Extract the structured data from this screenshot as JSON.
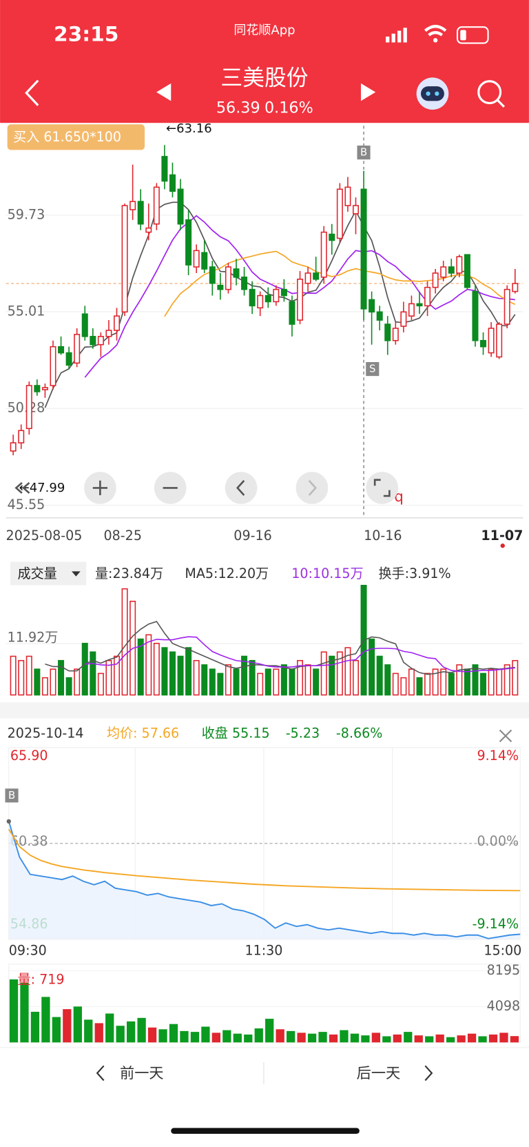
{
  "status": {
    "time": "23:15",
    "app": "同花顺App"
  },
  "header": {
    "name": "三美股份",
    "price": "56.39",
    "change": "0.16%"
  },
  "kline": {
    "type": "candlestick",
    "trade_tag": "买入 61.650*100",
    "high_label": "←63.16",
    "low_label": "←47.99",
    "buy_label": "B",
    "sell_label": "S",
    "marker_label": "q",
    "dates": [
      "2025-08-05",
      "08-25",
      "09-16",
      "10-16",
      "11-07"
    ],
    "ylim": [
      45.0,
      64.1
    ],
    "yticks": [
      59.73,
      55.01,
      50.28,
      45.55
    ],
    "last_price": 56.39,
    "up_color": "#e0262e",
    "down_color": "#0b8a20",
    "candles": [
      [
        48.2,
        49.0,
        47.99,
        48.6
      ],
      [
        48.6,
        49.5,
        48.3,
        49.2
      ],
      [
        49.3,
        51.6,
        49.0,
        51.4
      ],
      [
        51.4,
        51.7,
        50.9,
        51.1
      ],
      [
        51.2,
        51.5,
        50.8,
        51.3
      ],
      [
        51.4,
        53.6,
        51.2,
        53.3
      ],
      [
        53.3,
        53.8,
        52.9,
        53.0
      ],
      [
        53.0,
        53.3,
        52.2,
        52.4
      ],
      [
        52.5,
        54.2,
        52.3,
        53.9
      ],
      [
        54.9,
        55.3,
        53.6,
        53.8
      ],
      [
        53.8,
        54.2,
        53.2,
        53.4
      ],
      [
        53.4,
        54.0,
        52.8,
        53.8
      ],
      [
        53.8,
        54.6,
        53.4,
        54.1
      ],
      [
        54.1,
        55.2,
        53.6,
        54.8
      ],
      [
        55.0,
        60.3,
        54.8,
        60.2
      ],
      [
        60.0,
        62.2,
        59.5,
        60.4
      ],
      [
        60.4,
        61.0,
        59.0,
        59.3
      ],
      [
        58.9,
        60.3,
        58.5,
        59.1
      ],
      [
        59.3,
        61.3,
        59.0,
        61.1
      ],
      [
        62.6,
        63.16,
        61.0,
        61.4
      ],
      [
        61.7,
        62.3,
        60.6,
        60.9
      ],
      [
        61.0,
        61.5,
        59.0,
        59.3
      ],
      [
        59.5,
        60.0,
        56.8,
        57.3
      ],
      [
        57.2,
        58.3,
        56.9,
        58.0
      ],
      [
        57.9,
        58.5,
        56.9,
        57.1
      ],
      [
        57.2,
        57.5,
        55.8,
        56.4
      ],
      [
        56.3,
        56.9,
        55.6,
        56.1
      ],
      [
        56.1,
        57.4,
        55.9,
        57.2
      ],
      [
        57.1,
        57.6,
        56.3,
        56.7
      ],
      [
        56.7,
        57.2,
        55.8,
        56.1
      ],
      [
        56.1,
        56.5,
        54.9,
        55.3
      ],
      [
        55.2,
        56.0,
        54.8,
        55.8
      ],
      [
        55.8,
        56.2,
        55.2,
        55.5
      ],
      [
        55.5,
        56.3,
        55.3,
        56.1
      ],
      [
        56.1,
        56.6,
        55.5,
        55.8
      ],
      [
        55.5,
        55.8,
        53.8,
        54.4
      ],
      [
        54.6,
        57.0,
        54.4,
        56.6
      ],
      [
        56.4,
        57.2,
        56.0,
        56.9
      ],
      [
        56.9,
        57.7,
        56.5,
        56.6
      ],
      [
        56.7,
        59.2,
        56.4,
        58.9
      ],
      [
        58.8,
        59.3,
        57.8,
        58.5
      ],
      [
        58.6,
        61.3,
        58.4,
        61.0
      ],
      [
        60.2,
        61.6,
        59.9,
        61.1
      ],
      [
        59.8,
        60.6,
        58.8,
        60.2
      ],
      [
        61.0,
        61.9,
        54.6,
        55.15
      ],
      [
        55.6,
        56.0,
        53.4,
        55.0
      ],
      [
        55.0,
        55.3,
        54.1,
        54.6
      ],
      [
        54.4,
        54.8,
        52.9,
        53.6
      ],
      [
        53.6,
        54.5,
        53.4,
        54.2
      ],
      [
        54.3,
        55.5,
        54.0,
        55.0
      ],
      [
        54.8,
        55.8,
        54.6,
        55.4
      ],
      [
        55.4,
        56.0,
        54.9,
        55.3
      ],
      [
        55.3,
        56.5,
        54.8,
        56.2
      ],
      [
        56.2,
        57.1,
        55.9,
        56.9
      ],
      [
        56.7,
        57.5,
        56.5,
        57.2
      ],
      [
        57.2,
        57.6,
        56.7,
        56.9
      ],
      [
        56.9,
        57.8,
        56.7,
        57.7
      ],
      [
        57.8,
        57.8,
        56.1,
        56.2
      ],
      [
        56.0,
        56.3,
        53.3,
        53.6
      ],
      [
        53.6,
        54.0,
        52.9,
        53.3
      ],
      [
        53.0,
        54.5,
        52.8,
        54.2
      ],
      [
        52.8,
        54.5,
        52.7,
        54.4
      ],
      [
        54.4,
        56.3,
        54.2,
        56.1
      ],
      [
        56.0,
        57.1,
        55.9,
        56.39
      ]
    ]
  },
  "volume": {
    "type": "bar",
    "title": "成交量",
    "stats": [
      "量:23.84万",
      "MA5:12.20万",
      "10:10.15万",
      "换手:3.91%"
    ],
    "ylim": [
      0,
      26.4
    ],
    "yticks": [
      {
        "value": 11.92,
        "label": "11.92万"
      }
    ],
    "values": [
      9,
      8,
      9,
      6,
      4,
      6,
      8,
      4,
      6,
      12,
      10,
      5,
      8,
      9,
      24.7,
      21.8,
      13,
      14,
      12,
      11,
      10,
      9,
      11,
      8,
      7,
      6,
      5,
      7,
      6,
      9,
      8,
      5,
      6,
      6,
      7,
      6,
      8,
      7,
      6,
      10,
      9,
      10,
      11,
      8,
      25.5,
      13,
      9,
      7,
      5,
      4,
      6,
      4,
      5,
      6,
      6,
      5,
      7,
      6,
      7,
      5,
      6,
      6,
      7,
      8
    ]
  },
  "intraday": {
    "type": "line",
    "date": "2025-10-14",
    "stats": [
      "均价: 57.66",
      "收盘 55.15",
      "-5.23",
      "-8.66%"
    ],
    "ylim": [
      54.86,
      65.9
    ],
    "yticks": [
      {
        "value": 65.9,
        "label": "65.90"
      },
      60.38,
      54.86
    ],
    "pct_labels": [
      "9.14%",
      "0.00%",
      "-9.14%"
    ],
    "times": [
      "09:30",
      "11:30",
      "15:00"
    ],
    "buy_label": "B",
    "price": {
      "color": "#3a8ee6",
      "values": [
        61.65,
        59.6,
        58.6,
        58.5,
        58.4,
        58.3,
        58.5,
        58.2,
        58.0,
        58.2,
        57.8,
        57.7,
        57.6,
        57.4,
        57.5,
        57.3,
        57.2,
        57.1,
        57.0,
        56.8,
        56.9,
        56.6,
        56.5,
        56.3,
        56.0,
        55.5,
        55.8,
        55.6,
        55.7,
        55.5,
        55.4,
        55.5,
        55.4,
        55.3,
        55.2,
        55.3,
        55.2,
        55.2,
        55.1,
        55.2,
        55.1,
        55.1,
        55.0,
        55.1,
        55.1,
        54.9,
        55.0,
        55.1,
        55.15
      ]
    },
    "average": {
      "color": "#f5a623",
      "values": [
        61.2,
        60.2,
        59.7,
        59.4,
        59.2,
        59.05,
        58.95,
        58.85,
        58.78,
        58.7,
        58.64,
        58.58,
        58.52,
        58.47,
        58.42,
        58.37,
        58.32,
        58.27,
        58.23,
        58.19,
        58.15,
        58.11,
        58.07,
        58.03,
        58.0,
        57.97,
        57.94,
        57.92,
        57.9,
        57.88,
        57.86,
        57.84,
        57.82,
        57.8,
        57.79,
        57.77,
        57.76,
        57.75,
        57.74,
        57.73,
        57.72,
        57.71,
        57.7,
        57.69,
        57.68,
        57.675,
        57.67,
        57.665,
        57.66
      ]
    }
  },
  "intraday_volume": {
    "type": "bar",
    "label": "量: 719",
    "ylim": [
      0,
      8195
    ],
    "yticks": [
      8195,
      4098
    ],
    "values": [
      7200,
      6800,
      3500,
      5200,
      2900,
      3800,
      4100,
      2600,
      2200,
      3300,
      1900,
      2400,
      2800,
      1700,
      1500,
      2100,
      1300,
      1200,
      1800,
      1100,
      1400,
      1000,
      900,
      1600,
      2700,
      1500,
      1300,
      1100,
      1000,
      1200,
      900,
      1400,
      1000,
      800,
      1100,
      700,
      900,
      1200,
      800,
      700,
      900,
      600,
      800,
      1000,
      700,
      900,
      1100,
      719
    ]
  },
  "nav": {
    "prev": "前一天",
    "next": "后一天"
  }
}
